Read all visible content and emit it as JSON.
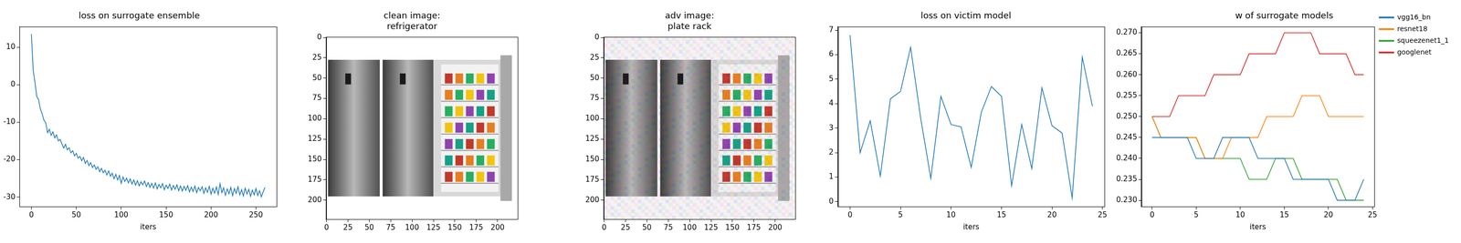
{
  "chart_data": [
    {
      "type": "line",
      "title": "loss on surrogate ensemble",
      "x_label": "iters",
      "color": "#1f77b4",
      "grid": false,
      "xlim": [
        -13,
        273
      ],
      "xticks": [
        0,
        50,
        100,
        150,
        200,
        250
      ],
      "ylim": [
        -32.5,
        15.5
      ],
      "yticks": [
        -30,
        -20,
        -10,
        0,
        10
      ],
      "x": [
        0,
        2,
        4,
        6,
        8,
        10,
        12,
        14,
        16,
        18,
        20,
        22,
        24,
        26,
        28,
        30,
        32,
        34,
        36,
        38,
        40,
        42,
        44,
        46,
        48,
        50,
        52,
        54,
        56,
        58,
        60,
        62,
        64,
        66,
        68,
        70,
        72,
        74,
        76,
        78,
        80,
        82,
        84,
        86,
        88,
        90,
        92,
        94,
        96,
        98,
        100,
        102,
        104,
        106,
        108,
        110,
        112,
        114,
        116,
        118,
        120,
        122,
        124,
        126,
        128,
        130,
        132,
        134,
        136,
        138,
        140,
        142,
        144,
        146,
        148,
        150,
        152,
        154,
        156,
        158,
        160,
        162,
        164,
        166,
        168,
        170,
        172,
        174,
        176,
        178,
        180,
        182,
        184,
        186,
        188,
        190,
        192,
        194,
        196,
        198,
        200,
        202,
        204,
        206,
        208,
        210,
        212,
        214,
        216,
        218,
        220,
        222,
        224,
        226,
        228,
        230,
        232,
        234,
        236,
        238,
        240,
        242,
        244,
        246,
        248,
        250,
        252,
        254,
        256,
        258,
        260
      ],
      "values": [
        13.5,
        3.8,
        0.5,
        -3.2,
        -4.0,
        -6.5,
        -7.8,
        -9.5,
        -10.2,
        -12.8,
        -11.9,
        -13.5,
        -12.6,
        -14.2,
        -13.4,
        -15.0,
        -14.6,
        -15.8,
        -16.9,
        -15.9,
        -17.4,
        -16.8,
        -18.2,
        -17.6,
        -19.0,
        -18.3,
        -19.6,
        -19.1,
        -20.3,
        -19.4,
        -21.0,
        -20.2,
        -21.6,
        -20.8,
        -22.1,
        -21.4,
        -22.6,
        -21.9,
        -23.2,
        -22.3,
        -23.5,
        -22.8,
        -24.1,
        -23.0,
        -24.4,
        -23.6,
        -25.1,
        -23.9,
        -25.4,
        -24.2,
        -26.3,
        -24.6,
        -25.8,
        -24.9,
        -26.2,
        -25.1,
        -26.5,
        -25.4,
        -26.8,
        -25.6,
        -27.0,
        -25.9,
        -26.7,
        -25.7,
        -27.2,
        -26.1,
        -27.4,
        -26.3,
        -27.6,
        -26.2,
        -27.8,
        -26.6,
        -27.5,
        -26.4,
        -28.0,
        -26.8,
        -27.7,
        -26.5,
        -28.1,
        -26.9,
        -27.9,
        -26.7,
        -28.3,
        -27.0,
        -28.4,
        -27.1,
        -28.2,
        -26.9,
        -28.6,
        -27.3,
        -28.5,
        -27.0,
        -28.8,
        -27.4,
        -28.3,
        -27.2,
        -29.0,
        -27.5,
        -28.7,
        -27.1,
        -29.2,
        -27.6,
        -28.9,
        -27.3,
        -29.3,
        -26.4,
        -28.8,
        -27.5,
        -29.5,
        -27.8,
        -29.1,
        -27.4,
        -29.6,
        -27.7,
        -29.0,
        -27.2,
        -29.4,
        -28.0,
        -29.7,
        -27.6,
        -29.2,
        -27.9,
        -29.8,
        -28.1,
        -29.4,
        -27.7,
        -29.6,
        -28.3,
        -29.9,
        -28.6,
        -27.4
      ]
    },
    {
      "type": "image",
      "title": "clean image:\nrefrigerator",
      "grid": false,
      "xlim": [
        -0.5,
        223.5
      ],
      "xticks": [
        0,
        25,
        50,
        75,
        100,
        125,
        150,
        175,
        200
      ],
      "ylim": [
        223.5,
        -0.5
      ],
      "yticks": [
        0,
        25,
        50,
        75,
        100,
        125,
        150,
        175,
        200
      ]
    },
    {
      "type": "image",
      "title": "adv image:\nplate rack",
      "grid": false,
      "xlim": [
        -0.5,
        223.5
      ],
      "xticks": [
        0,
        25,
        50,
        75,
        100,
        125,
        150,
        175,
        200
      ],
      "ylim": [
        223.5,
        -0.5
      ],
      "yticks": [
        0,
        25,
        50,
        75,
        100,
        125,
        150,
        175,
        200
      ]
    },
    {
      "type": "line",
      "title": "loss on victim model",
      "x_label": "iters",
      "color": "#1f77b4",
      "grid": false,
      "xlim": [
        -1.2,
        25.2
      ],
      "xticks": [
        0,
        5,
        10,
        15,
        20,
        25
      ],
      "ylim": [
        -0.2,
        7.15
      ],
      "yticks": [
        0,
        1,
        2,
        3,
        4,
        5,
        6,
        7
      ],
      "x": [
        0,
        1,
        2,
        3,
        4,
        5,
        6,
        7,
        8,
        9,
        10,
        11,
        12,
        13,
        14,
        15,
        16,
        17,
        18,
        19,
        20,
        21,
        22,
        23,
        24
      ],
      "values": [
        6.8,
        2.0,
        3.3,
        1.05,
        4.2,
        4.5,
        6.3,
        3.4,
        0.95,
        4.3,
        3.15,
        3.05,
        1.4,
        3.65,
        4.7,
        4.3,
        0.65,
        3.15,
        1.35,
        4.65,
        3.1,
        2.8,
        0.15,
        5.9,
        3.9
      ]
    },
    {
      "type": "line",
      "title": "w of surrogate models",
      "x_label": "iters",
      "grid": false,
      "legend": "right",
      "xlim": [
        -1.2,
        25.2
      ],
      "xticks": [
        0,
        5,
        10,
        15,
        20,
        25
      ],
      "ylim": [
        0.2285,
        0.2715
      ],
      "yticks": [
        {
          "value": 0.23,
          "label": "0.230"
        },
        {
          "value": 0.235,
          "label": "0.235"
        },
        {
          "value": 0.24,
          "label": "0.240"
        },
        {
          "value": 0.245,
          "label": "0.245"
        },
        {
          "value": 0.25,
          "label": "0.250"
        },
        {
          "value": 0.255,
          "label": "0.255"
        },
        {
          "value": 0.26,
          "label": "0.260"
        },
        {
          "value": 0.265,
          "label": "0.265"
        },
        {
          "value": 0.27,
          "label": "0.270"
        }
      ],
      "x": [
        0,
        1,
        2,
        3,
        4,
        5,
        6,
        7,
        8,
        9,
        10,
        11,
        12,
        13,
        14,
        15,
        16,
        17,
        18,
        19,
        20,
        21,
        22,
        23,
        24
      ],
      "series": [
        {
          "name": "vgg16_bn",
          "color": "#1f77b4",
          "values": [
            0.245,
            0.245,
            0.245,
            0.245,
            0.245,
            0.24,
            0.24,
            0.24,
            0.245,
            0.245,
            0.245,
            0.245,
            0.24,
            0.24,
            0.24,
            0.24,
            0.235,
            0.235,
            0.235,
            0.235,
            0.235,
            0.23,
            0.23,
            0.23,
            0.235
          ]
        },
        {
          "name": "resnet18",
          "color": "#ff7f0e",
          "values": [
            0.25,
            0.245,
            0.245,
            0.245,
            0.245,
            0.245,
            0.24,
            0.24,
            0.24,
            0.245,
            0.245,
            0.245,
            0.245,
            0.25,
            0.25,
            0.25,
            0.25,
            0.255,
            0.255,
            0.255,
            0.25,
            0.25,
            0.25,
            0.25,
            0.25
          ]
        },
        {
          "name": "squeezenet1_1",
          "color": "#2ca02c",
          "values": [
            0.25,
            0.245,
            0.245,
            0.245,
            0.245,
            0.245,
            0.24,
            0.24,
            0.24,
            0.24,
            0.24,
            0.235,
            0.235,
            0.235,
            0.24,
            0.24,
            0.24,
            0.235,
            0.235,
            0.235,
            0.235,
            0.235,
            0.23,
            0.23,
            0.23
          ]
        },
        {
          "name": "googlenet",
          "color": "#d62728",
          "values": [
            0.25,
            0.25,
            0.25,
            0.255,
            0.255,
            0.255,
            0.255,
            0.26,
            0.26,
            0.26,
            0.26,
            0.265,
            0.265,
            0.265,
            0.265,
            0.27,
            0.27,
            0.27,
            0.27,
            0.265,
            0.265,
            0.265,
            0.265,
            0.26,
            0.26
          ]
        }
      ]
    }
  ]
}
